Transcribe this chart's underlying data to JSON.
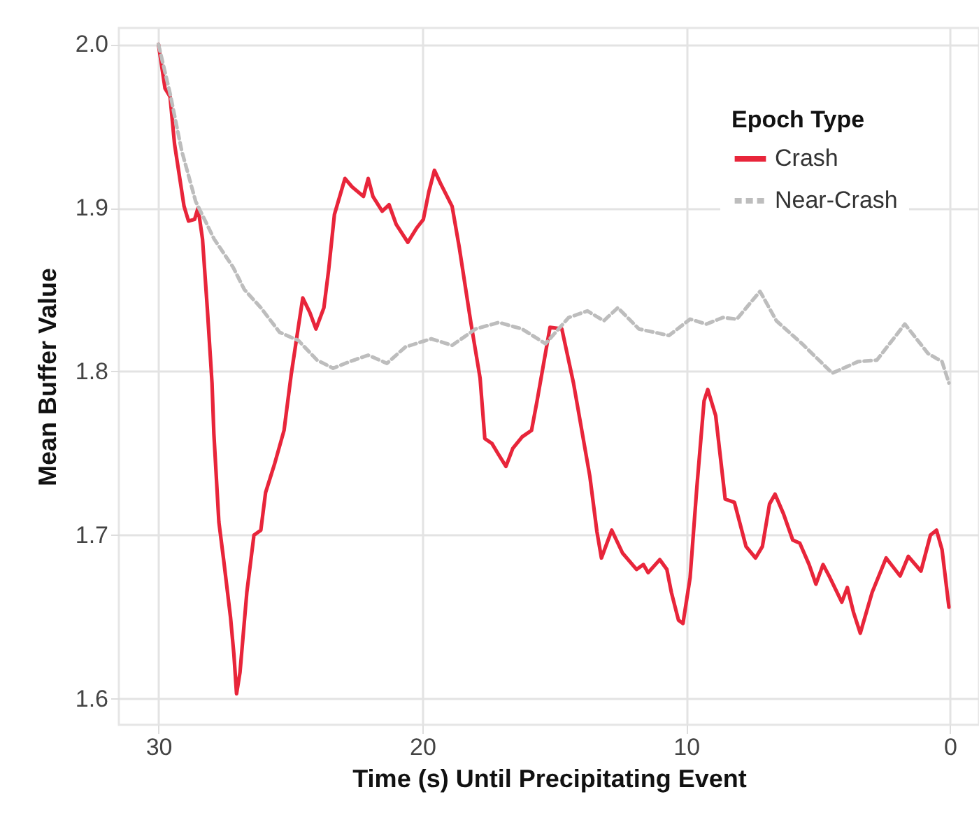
{
  "chart_data": {
    "type": "line",
    "xlabel": "Time (s) Until Precipitating Event",
    "ylabel": "Mean Buffer Value",
    "legend_title": "Epoch Type",
    "xlim": [
      31.5,
      -1.1
    ],
    "xticks": [
      30,
      20,
      10,
      0
    ],
    "ylim": [
      1.584,
      2.01
    ],
    "yticks": [
      1.6,
      1.7,
      1.8,
      1.9,
      {
        "value": 2,
        "label": "2.0"
      }
    ],
    "grid": true,
    "legend": "top right",
    "marker": "none",
    "series": [
      {
        "name": "Crash",
        "color": "#e8253a",
        "line_style": "solid",
        "x": [
          30.0,
          29.75,
          29.56,
          29.39,
          29.03,
          28.86,
          28.63,
          28.5,
          28.33,
          28.15,
          27.97,
          27.9,
          27.71,
          27.53,
          27.27,
          27.14,
          27.04,
          26.91,
          26.65,
          26.38,
          26.12,
          25.94,
          25.59,
          25.24,
          24.97,
          24.7,
          24.53,
          24.26,
          24.03,
          23.73,
          23.55,
          23.33,
          22.93,
          22.67,
          22.23,
          22.05,
          21.87,
          21.52,
          21.26,
          20.99,
          20.55,
          20.2,
          19.96,
          19.75,
          19.54,
          19.31,
          18.87,
          18.6,
          18.16,
          17.81,
          17.63,
          17.36,
          17.1,
          16.83,
          16.57,
          16.22,
          15.86,
          15.65,
          15.16,
          14.71,
          14.27,
          13.65,
          13.38,
          13.21,
          12.82,
          12.41,
          11.88,
          11.62,
          11.44,
          11.0,
          10.73,
          10.56,
          10.29,
          10.12,
          9.85,
          9.59,
          9.32,
          9.18,
          8.88,
          8.52,
          8.17,
          7.73,
          7.37,
          7.11,
          6.84,
          6.63,
          6.31,
          5.96,
          5.69,
          5.34,
          5.08,
          4.81,
          4.55,
          4.1,
          3.89,
          3.66,
          3.4,
          2.95,
          2.42,
          1.89,
          1.58,
          1.1,
          0.74,
          0.51,
          0.3,
          0.04
        ],
        "values": [
          2.0,
          1.973,
          1.968,
          1.939,
          1.901,
          1.892,
          1.893,
          1.9,
          1.881,
          1.839,
          1.793,
          1.762,
          1.708,
          1.685,
          1.65,
          1.627,
          1.603,
          1.616,
          1.665,
          1.7,
          1.703,
          1.726,
          1.744,
          1.764,
          1.798,
          1.827,
          1.845,
          1.836,
          1.826,
          1.839,
          1.862,
          1.896,
          1.918,
          1.913,
          1.907,
          1.918,
          1.907,
          1.898,
          1.902,
          1.89,
          1.879,
          1.888,
          1.893,
          1.91,
          1.923,
          1.915,
          1.901,
          1.876,
          1.83,
          1.796,
          1.759,
          1.756,
          1.749,
          1.742,
          1.753,
          1.76,
          1.764,
          1.782,
          1.827,
          1.826,
          1.793,
          1.736,
          1.702,
          1.686,
          1.703,
          1.689,
          1.679,
          1.682,
          1.677,
          1.685,
          1.679,
          1.665,
          1.648,
          1.646,
          1.674,
          1.73,
          1.782,
          1.789,
          1.773,
          1.722,
          1.72,
          1.693,
          1.686,
          1.693,
          1.719,
          1.725,
          1.713,
          1.697,
          1.695,
          1.682,
          1.67,
          1.682,
          1.674,
          1.659,
          1.668,
          1.653,
          1.64,
          1.665,
          1.686,
          1.675,
          1.687,
          1.678,
          1.7,
          1.703,
          1.691,
          1.656
        ]
      },
      {
        "name": "Near-Crash",
        "color": "#bdbdbd",
        "line_style": "dashed",
        "x": [
          30.0,
          29.56,
          29.12,
          28.59,
          27.89,
          27.18,
          26.74,
          26.12,
          25.41,
          24.7,
          23.99,
          23.38,
          22.76,
          22.05,
          21.34,
          20.64,
          19.66,
          18.87,
          17.98,
          17.1,
          16.22,
          15.33,
          14.45,
          13.74,
          13.12,
          12.59,
          11.79,
          10.65,
          9.85,
          9.23,
          8.61,
          8.08,
          7.2,
          6.58,
          5.61,
          4.46,
          3.49,
          2.77,
          1.71,
          0.83,
          0.3,
          0.04
        ],
        "values": [
          2.0,
          1.97,
          1.935,
          1.904,
          1.881,
          1.864,
          1.85,
          1.839,
          1.824,
          1.819,
          1.807,
          1.802,
          1.806,
          1.81,
          1.805,
          1.815,
          1.82,
          1.816,
          1.826,
          1.83,
          1.826,
          1.817,
          1.833,
          1.837,
          1.831,
          1.839,
          1.826,
          1.822,
          1.832,
          1.829,
          1.833,
          1.832,
          1.849,
          1.831,
          1.817,
          1.799,
          1.806,
          1.807,
          1.829,
          1.811,
          1.806,
          1.793
        ]
      }
    ]
  }
}
